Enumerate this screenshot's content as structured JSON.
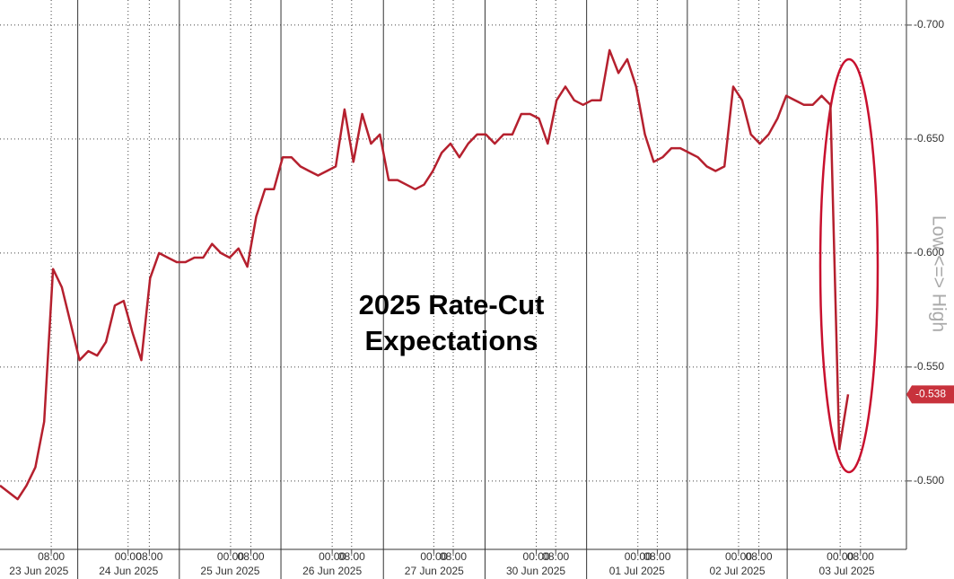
{
  "chart_data": {
    "type": "line",
    "title_lines": [
      "2025 Rate-Cut",
      "Expectations"
    ],
    "y_axis_label": "Low <=> High",
    "series": [
      {
        "color": "#b5202e",
        "values": [
          -0.498,
          -0.495,
          -0.492,
          -0.498,
          -0.506,
          -0.526,
          -0.593,
          -0.585,
          -0.569,
          -0.553,
          -0.557,
          -0.555,
          -0.561,
          -0.577,
          -0.579,
          -0.565,
          -0.553,
          -0.589,
          -0.6,
          -0.598,
          -0.596,
          -0.596,
          -0.598,
          -0.598,
          -0.604,
          -0.6,
          -0.598,
          -0.602,
          -0.594,
          -0.616,
          -0.628,
          -0.628,
          -0.642,
          -0.642,
          -0.638,
          -0.636,
          -0.634,
          -0.636,
          -0.638,
          -0.663,
          -0.64,
          -0.661,
          -0.648,
          -0.652,
          -0.632,
          -0.632,
          -0.63,
          -0.628,
          -0.63,
          -0.636,
          -0.644,
          -0.648,
          -0.642,
          -0.648,
          -0.652,
          -0.652,
          -0.648,
          -0.652,
          -0.652,
          -0.661,
          -0.661,
          -0.659,
          -0.648,
          -0.667,
          -0.673,
          -0.667,
          -0.665,
          -0.667,
          -0.667,
          -0.689,
          -0.679,
          -0.685,
          -0.673,
          -0.652,
          -0.64,
          -0.642,
          -0.646,
          -0.646,
          -0.644,
          -0.642,
          -0.638,
          -0.636,
          -0.638,
          -0.673,
          -0.667,
          -0.652,
          -0.648,
          -0.652,
          -0.659,
          -0.669,
          -0.667,
          -0.665,
          -0.665,
          -0.669,
          -0.665,
          -0.514,
          -0.538
        ]
      }
    ],
    "last_value_label": "-0.538",
    "last_label_color": "#c8323c",
    "ylim": [
      -0.47,
      -0.711
    ],
    "yticks": [
      {
        "value": -0.7,
        "label": "-0.700"
      },
      {
        "value": -0.65,
        "label": "-0.650"
      },
      {
        "value": -0.6,
        "label": "-0.600"
      },
      {
        "value": -0.55,
        "label": "-0.550"
      },
      {
        "value": -0.5,
        "label": "-0.500"
      }
    ],
    "xlim": [
      0,
      102.6
    ],
    "xticks": [
      {
        "value": 5.8,
        "label": "08:00"
      },
      {
        "value": 14.5,
        "label": "00:00"
      },
      {
        "value": 16.9,
        "label": "08:00"
      },
      {
        "value": 26.1,
        "label": "00:00"
      },
      {
        "value": 28.4,
        "label": "08:00"
      },
      {
        "value": 37.6,
        "label": "00:00"
      },
      {
        "value": 39.8,
        "label": "08:00"
      },
      {
        "value": 49.1,
        "label": "00:00"
      },
      {
        "value": 51.3,
        "label": "08:00"
      },
      {
        "value": 60.7,
        "label": "00:00"
      },
      {
        "value": 62.9,
        "label": "08:00"
      },
      {
        "value": 72.2,
        "label": "00:00"
      },
      {
        "value": 74.4,
        "label": "08:00"
      },
      {
        "value": 83.6,
        "label": "00:00"
      },
      {
        "value": 85.9,
        "label": "08:00"
      },
      {
        "value": 95.1,
        "label": "00:00"
      },
      {
        "value": 97.4,
        "label": "08:00"
      }
    ],
    "day_breaks": [
      8.8,
      20.3,
      31.8,
      43.4,
      54.9,
      66.4,
      77.8,
      89.1
    ],
    "day_labels": [
      "23 Jun 2025",
      "24 Jun 2025",
      "25 Jun 2025",
      "26 Jun 2025",
      "27 Jun 2025",
      "30 Jun 2025",
      "01 Jul 2025",
      "02 Jul 2025",
      "03 Jul 2025"
    ],
    "grid": true
  }
}
